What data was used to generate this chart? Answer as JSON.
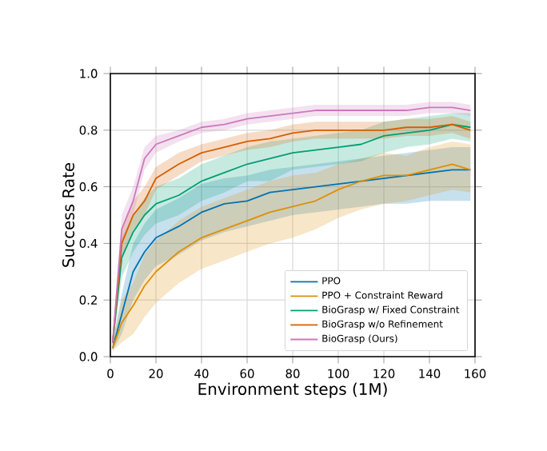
{
  "chart_data": {
    "type": "line",
    "xlabel": "Environment steps (1M)",
    "ylabel": "Success Rate",
    "x": [
      1,
      5,
      10,
      15,
      20,
      30,
      40,
      50,
      60,
      70,
      80,
      90,
      100,
      110,
      120,
      130,
      140,
      150,
      158
    ],
    "series": [
      {
        "name": "PPO",
        "color": "#0173b2",
        "values": [
          0.03,
          0.15,
          0.3,
          0.37,
          0.42,
          0.46,
          0.51,
          0.54,
          0.55,
          0.58,
          0.59,
          0.6,
          0.61,
          0.62,
          0.63,
          0.64,
          0.65,
          0.66,
          0.66
        ],
        "lower": [
          0.02,
          0.08,
          0.2,
          0.27,
          0.32,
          0.36,
          0.41,
          0.44,
          0.46,
          0.48,
          0.5,
          0.51,
          0.52,
          0.53,
          0.54,
          0.54,
          0.55,
          0.55,
          0.55
        ],
        "upper": [
          0.05,
          0.22,
          0.4,
          0.47,
          0.52,
          0.56,
          0.61,
          0.63,
          0.64,
          0.66,
          0.67,
          0.68,
          0.69,
          0.7,
          0.71,
          0.72,
          0.73,
          0.74,
          0.74
        ]
      },
      {
        "name": "PPO + Constraint Reward",
        "color": "#de8f05",
        "values": [
          0.03,
          0.12,
          0.18,
          0.25,
          0.3,
          0.37,
          0.42,
          0.45,
          0.48,
          0.51,
          0.53,
          0.55,
          0.59,
          0.62,
          0.64,
          0.64,
          0.66,
          0.68,
          0.66
        ],
        "lower": [
          0.02,
          0.05,
          0.08,
          0.14,
          0.19,
          0.26,
          0.31,
          0.34,
          0.37,
          0.4,
          0.42,
          0.45,
          0.49,
          0.52,
          0.54,
          0.55,
          0.57,
          0.59,
          0.58
        ],
        "upper": [
          0.05,
          0.2,
          0.26,
          0.36,
          0.41,
          0.48,
          0.53,
          0.56,
          0.59,
          0.62,
          0.64,
          0.65,
          0.68,
          0.7,
          0.72,
          0.71,
          0.74,
          0.76,
          0.75
        ]
      },
      {
        "name": "BioGrasp w/ Fixed Constraint",
        "color": "#029e73",
        "values": [
          0.05,
          0.35,
          0.44,
          0.5,
          0.54,
          0.57,
          0.62,
          0.65,
          0.68,
          0.7,
          0.72,
          0.73,
          0.74,
          0.75,
          0.78,
          0.79,
          0.8,
          0.82,
          0.81
        ],
        "lower": [
          0.03,
          0.28,
          0.37,
          0.43,
          0.47,
          0.5,
          0.55,
          0.58,
          0.62,
          0.62,
          0.66,
          0.67,
          0.68,
          0.69,
          0.72,
          0.74,
          0.75,
          0.77,
          0.76
        ],
        "upper": [
          0.07,
          0.42,
          0.5,
          0.56,
          0.6,
          0.63,
          0.68,
          0.71,
          0.74,
          0.76,
          0.77,
          0.78,
          0.79,
          0.8,
          0.83,
          0.84,
          0.85,
          0.86,
          0.86
        ]
      },
      {
        "name": "BioGrasp w/o Refinement",
        "color": "#d55e00",
        "values": [
          0.05,
          0.4,
          0.5,
          0.55,
          0.63,
          0.68,
          0.72,
          0.74,
          0.76,
          0.77,
          0.79,
          0.8,
          0.8,
          0.8,
          0.8,
          0.81,
          0.81,
          0.82,
          0.8
        ],
        "lower": [
          0.03,
          0.35,
          0.45,
          0.5,
          0.59,
          0.64,
          0.69,
          0.71,
          0.73,
          0.74,
          0.76,
          0.77,
          0.77,
          0.77,
          0.77,
          0.78,
          0.78,
          0.79,
          0.77
        ],
        "upper": [
          0.07,
          0.45,
          0.55,
          0.6,
          0.67,
          0.72,
          0.75,
          0.77,
          0.79,
          0.8,
          0.82,
          0.83,
          0.83,
          0.83,
          0.83,
          0.84,
          0.84,
          0.85,
          0.83
        ]
      },
      {
        "name": "BioGrasp (Ours)",
        "color": "#cc78bc",
        "values": [
          0.05,
          0.45,
          0.55,
          0.7,
          0.75,
          0.78,
          0.81,
          0.82,
          0.84,
          0.85,
          0.86,
          0.87,
          0.87,
          0.87,
          0.87,
          0.87,
          0.88,
          0.88,
          0.87
        ],
        "lower": [
          0.03,
          0.4,
          0.5,
          0.66,
          0.72,
          0.76,
          0.79,
          0.8,
          0.82,
          0.83,
          0.84,
          0.85,
          0.85,
          0.85,
          0.85,
          0.85,
          0.86,
          0.86,
          0.85
        ],
        "upper": [
          0.07,
          0.5,
          0.6,
          0.74,
          0.78,
          0.8,
          0.83,
          0.84,
          0.86,
          0.87,
          0.88,
          0.89,
          0.89,
          0.89,
          0.89,
          0.89,
          0.9,
          0.9,
          0.89
        ]
      }
    ],
    "xlim": [
      0,
      160
    ],
    "ylim": [
      0,
      1.0
    ],
    "xticks": [
      0,
      20,
      40,
      60,
      80,
      100,
      120,
      140,
      160
    ],
    "yticks": [
      {
        "value": 0,
        "label": "0.0"
      },
      {
        "value": 0.2,
        "label": "0.2"
      },
      {
        "value": 0.4,
        "label": "0.4"
      },
      {
        "value": 0.6,
        "label": "0.6"
      },
      {
        "value": 0.8,
        "label": "0.8"
      },
      {
        "value": 1.0,
        "label": "1.0"
      }
    ],
    "grid": true,
    "legend": "bottom right",
    "marker": "none",
    "line_style": "solid"
  }
}
